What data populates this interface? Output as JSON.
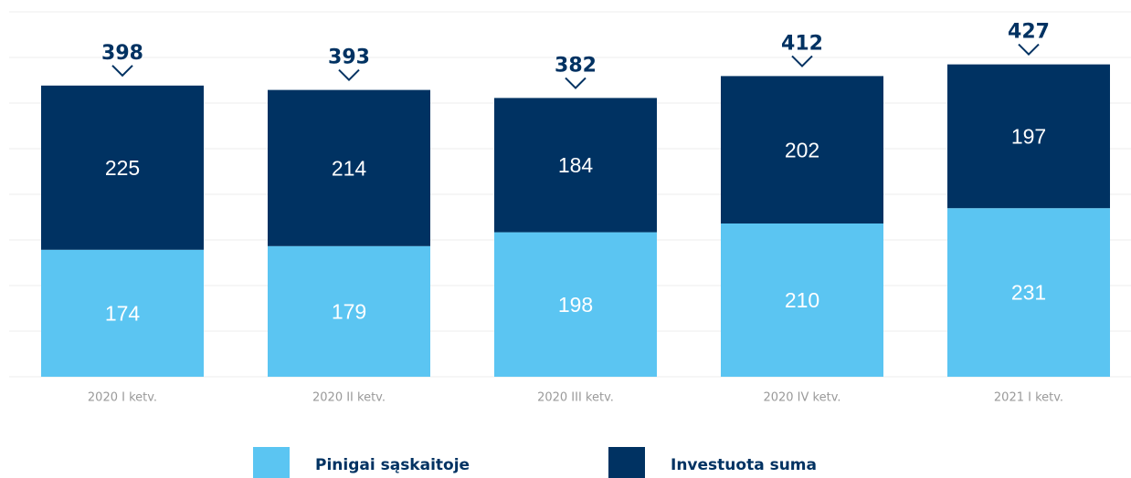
{
  "chart_data": {
    "type": "stacked_bar",
    "categories": [
      "2020 I ketv.",
      "2020 II ketv.",
      "2020 III ketv.",
      "2020 IV ketv.",
      "2021 I ketv."
    ],
    "series": [
      {
        "name": "Pinigai sąskaitoje",
        "color": "#5bc5f2",
        "values": [
          174,
          179,
          198,
          210,
          231
        ]
      },
      {
        "name": "Investuota suma",
        "color": "#003262",
        "values": [
          225,
          214,
          184,
          202,
          197
        ]
      }
    ],
    "totals": [
      398,
      393,
      382,
      412,
      427
    ],
    "ylim": [
      0,
      500
    ],
    "yticks": [
      0,
      62.5,
      125,
      187.5,
      250,
      312.5,
      375,
      437.5,
      500
    ],
    "grid": true
  }
}
